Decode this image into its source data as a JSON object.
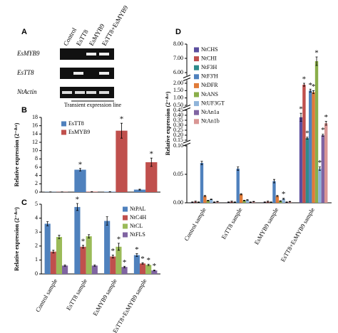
{
  "gel": {
    "panel_label": "A",
    "lanes": [
      "Control",
      "EsTT8",
      "EsMYB9",
      "EsTT8+EsMYB9"
    ],
    "rows": [
      "EsMYB9",
      "EsTT8",
      "NtActin"
    ],
    "caption": "Transient expression line"
  },
  "chart_data": [
    {
      "type": "bar",
      "panel_label": "B",
      "y_label": "Relative expression (2⁻ᐞᶜᵗ)",
      "categories": [
        null,
        null,
        null,
        null
      ],
      "series": [
        {
          "name": "EsTT8",
          "color": "#4f81bd",
          "values": [
            0.05,
            5.4,
            0.1,
            0.6
          ],
          "errors": [
            0.02,
            0.3,
            0.02,
            0.1
          ],
          "significant": [
            false,
            true,
            false,
            false
          ]
        },
        {
          "name": "EsMYB9",
          "color": "#c0504d",
          "values": [
            0.05,
            0.1,
            14.8,
            7.2
          ],
          "errors": [
            0.02,
            0.02,
            1.8,
            1.0
          ],
          "significant": [
            false,
            false,
            true,
            true
          ]
        }
      ],
      "significance_label": "*",
      "ylim": [
        0,
        18
      ],
      "yticks": [
        0,
        2,
        4,
        6,
        8,
        10,
        12,
        14,
        16,
        18
      ]
    },
    {
      "type": "bar",
      "panel_label": "C",
      "y_label": "Relative expression (2⁻ᐞᶜᵗ)",
      "categories": [
        "Control sample",
        "EsTT8 sample",
        "EsMYB9 sample",
        "EsTT8+EsMYB9 sample"
      ],
      "series": [
        {
          "name": "NtPAL",
          "color": "#4f81bd",
          "values": [
            3.6,
            4.8,
            3.8,
            1.35
          ],
          "errors": [
            0.15,
            0.25,
            0.3,
            0.1
          ],
          "significant": [
            false,
            true,
            false,
            true
          ]
        },
        {
          "name": "NtC4H",
          "color": "#c0504d",
          "values": [
            1.6,
            1.95,
            1.25,
            0.75
          ],
          "errors": [
            0.1,
            0.1,
            0.1,
            0.05
          ],
          "significant": [
            false,
            true,
            true,
            true
          ]
        },
        {
          "name": "NtCL",
          "color": "#9bbb59",
          "values": [
            2.65,
            2.7,
            1.95,
            0.65
          ],
          "errors": [
            0.12,
            0.12,
            0.25,
            0.05
          ],
          "significant": [
            false,
            false,
            true,
            true
          ]
        },
        {
          "name": "NtFLS",
          "color": "#8064a2",
          "values": [
            0.6,
            0.6,
            0.5,
            0.25
          ],
          "errors": [
            0.05,
            0.05,
            0.05,
            0.03
          ],
          "significant": [
            false,
            false,
            true,
            true
          ]
        }
      ],
      "significance_label": "*",
      "ylim": [
        0,
        5
      ],
      "yticks": [
        0,
        1,
        2,
        3,
        4,
        5
      ]
    },
    {
      "type": "bar",
      "panel_label": "D",
      "y_label": "Relative expression (2⁻ᐞᶜᵗ)",
      "categories": [
        "Control sample",
        "EsTT8 sample",
        "EsMYB9 sample",
        "EsTT8+EsMYB9 sample"
      ],
      "series": [
        {
          "name": "NtCHS",
          "color": "#5b4e9e",
          "values": [
            0.001,
            0.001,
            0.001,
            0.38
          ],
          "errors": [
            0.0005,
            0.0005,
            0.0005,
            0.04
          ],
          "significant": [
            false,
            false,
            false,
            true
          ]
        },
        {
          "name": "NtCHI",
          "color": "#c0504d",
          "values": [
            0.002,
            0.002,
            0.002,
            1.9
          ],
          "errors": [
            0.001,
            0.001,
            0.001,
            0.1
          ],
          "significant": [
            false,
            false,
            false,
            true
          ]
        },
        {
          "name": "NtF3H",
          "color": "#2e8b8b",
          "values": [
            0.001,
            0.001,
            0.001,
            0.17
          ],
          "errors": [
            0.0005,
            0.0005,
            0.0005,
            0.01
          ],
          "significant": [
            false,
            false,
            false,
            true
          ]
        },
        {
          "name": "NtF3'H",
          "color": "#4f81bd",
          "values": [
            0.07,
            0.06,
            0.038,
            1.5
          ],
          "errors": [
            0.003,
            0.003,
            0.003,
            0.1
          ],
          "significant": [
            false,
            false,
            false,
            true
          ]
        },
        {
          "name": "NtDFR",
          "color": "#e07b39",
          "values": [
            0.012,
            0.015,
            0.012,
            1.4
          ],
          "errors": [
            0.001,
            0.001,
            0.001,
            0.1
          ],
          "significant": [
            false,
            false,
            false,
            true
          ]
        },
        {
          "name": "NtANS",
          "color": "#8aae4a",
          "values": [
            0.004,
            0.004,
            0.003,
            6.8
          ],
          "errors": [
            0.0005,
            0.0005,
            0.0005,
            0.3
          ],
          "significant": [
            false,
            false,
            false,
            true
          ]
        },
        {
          "name": "NtUF3GT",
          "color": "#8fb4d9",
          "values": [
            0.006,
            0.005,
            0.007,
            0.06
          ],
          "errors": [
            0.0005,
            0.0005,
            0.001,
            0.003
          ],
          "significant": [
            false,
            false,
            true,
            true
          ]
        },
        {
          "name": "NtAn1a",
          "color": "#8064a2",
          "values": [
            0.001,
            0.001,
            0.001,
            0.2
          ],
          "errors": [
            0.0005,
            0.0005,
            0.0005,
            0.01
          ],
          "significant": [
            false,
            false,
            false,
            true
          ]
        },
        {
          "name": "NtAn1b",
          "color": "#d99694",
          "values": [
            0.002,
            0.002,
            0.002,
            0.32
          ],
          "errors": [
            0.0005,
            0.0005,
            0.0005,
            0.02
          ],
          "significant": [
            false,
            false,
            false,
            true
          ]
        }
      ],
      "significance_label": "*",
      "ylim": [
        0,
        8
      ],
      "ylim_segments": [
        [
          0,
          0.1
        ],
        [
          0.15,
          0.45
        ],
        [
          0.5,
          2
        ],
        [
          6,
          8
        ]
      ],
      "yticks": [
        {
          "value": 0,
          "label": "0.00"
        },
        {
          "value": 0.05,
          "label": "0.05"
        },
        {
          "value": 0.1,
          "label": "0.10"
        },
        {
          "value": 0.15,
          "label": "0.15"
        },
        {
          "value": 0.2,
          "label": "0.20"
        },
        {
          "value": 0.25,
          "label": "0.25"
        },
        {
          "value": 0.3,
          "label": "0.30"
        },
        {
          "value": 0.35,
          "label": "0.35"
        },
        {
          "value": 0.4,
          "label": "0.40"
        },
        {
          "value": 0.45,
          "label": "0.45"
        },
        {
          "value": 0.5,
          "label": "0.50"
        },
        {
          "value": 1,
          "label": "1.00"
        },
        {
          "value": 1.5,
          "label": "1.50"
        },
        {
          "value": 2,
          "label": "2.00"
        },
        {
          "value": 6,
          "label": "6.00"
        },
        {
          "value": 7,
          "label": "7.00"
        },
        {
          "value": 8,
          "label": "8.00"
        }
      ]
    }
  ]
}
